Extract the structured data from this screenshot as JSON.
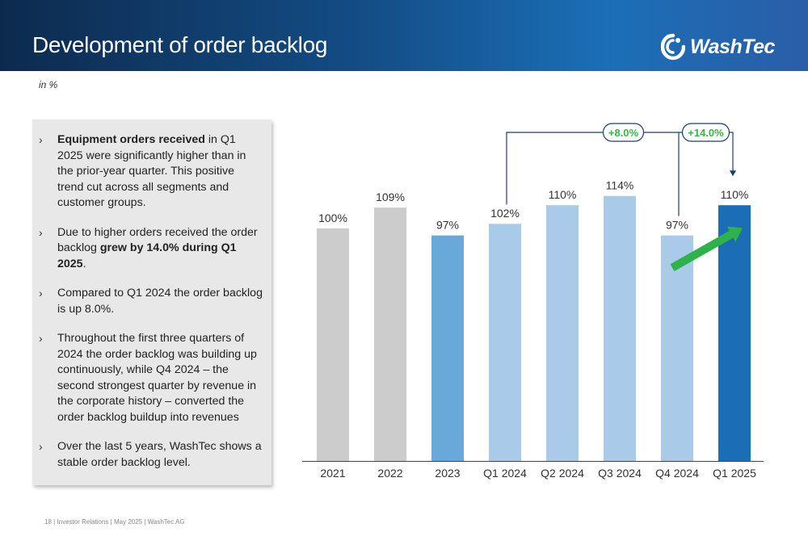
{
  "header": {
    "title": "Development of order backlog",
    "logo_text": "WashTec",
    "logo_icon": "washtec-swirl-icon"
  },
  "unit_note": "in %",
  "bullets": [
    [
      {
        "t": "Equipment orders received",
        "b": true
      },
      {
        "t": " in Q1 2025 were significantly higher than in the prior-year quarter. This positive trend cut across all segments and customer groups.",
        "b": false
      }
    ],
    [
      {
        "t": "Due to higher orders received the order backlog ",
        "b": false
      },
      {
        "t": "grew by 14.0% during Q1 2025",
        "b": true
      },
      {
        "t": ".",
        "b": false
      }
    ],
    [
      {
        "t": "Compared to Q1 2024 the order backlog is up 8.0%.",
        "b": false
      }
    ],
    [
      {
        "t": "Throughout the first three quarters of 2024 the order backlog was building up continuously, while Q4 2024 – the second strongest quarter by revenue in the corporate history – converted the order backlog buildup into revenues",
        "b": false
      }
    ],
    [
      {
        "t": "Over the last 5 years, WashTec shows a stable order backlog level.",
        "b": false
      }
    ]
  ],
  "bullet_marker": "›",
  "chart_data": {
    "type": "bar",
    "categories": [
      "2021",
      "2022",
      "2023",
      "Q1 2024",
      "Q2 2024",
      "Q3 2024",
      "Q4 2024",
      "Q1 2025"
    ],
    "values": [
      100,
      109,
      97,
      102,
      110,
      114,
      97,
      110
    ],
    "data_labels": [
      "100%",
      "109%",
      "97%",
      "102%",
      "110%",
      "114%",
      "97%",
      "110%"
    ],
    "bar_colors": [
      "#cccccc",
      "#cccccc",
      "#68a9d9",
      "#a9cbe9",
      "#a9cbe9",
      "#a9cbe9",
      "#a9cbe9",
      "#1b6db6"
    ],
    "unit": "%",
    "ylim": [
      0,
      125
    ],
    "grid": false,
    "legend": "none",
    "annotations": [
      {
        "label": "+8.0%",
        "from": "Q1 2024",
        "to": "Q1 2025"
      },
      {
        "label": "+14.0%",
        "from": "Q4 2024",
        "to": "Q1 2025"
      }
    ],
    "trend_arrow": {
      "from": "Q4 2024",
      "to": "Q1 2025",
      "color": "#2db34a"
    },
    "annotation_color": "#3bb34a",
    "connector_color": "#1a3f6e"
  },
  "footer": "18 | Investor Relations | May 2025 | WashTec AG"
}
